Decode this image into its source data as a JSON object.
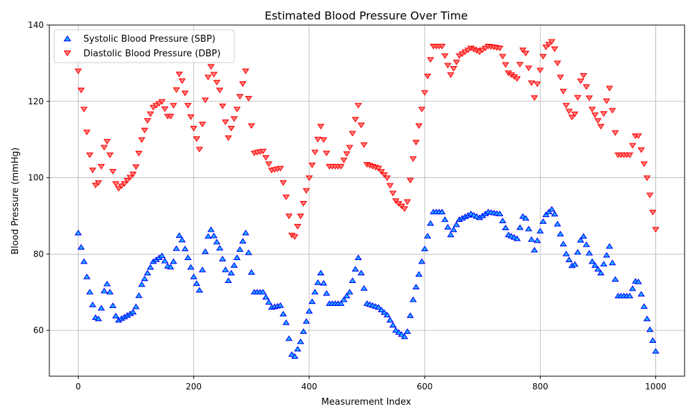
{
  "chart_data": {
    "type": "scatter",
    "title": "Estimated Blood Pressure Over Time",
    "xlabel": "Measurement Index",
    "ylabel": "Blood Pressure (mmHg)",
    "xlim": [
      -50,
      1050
    ],
    "ylim": [
      48,
      140
    ],
    "xticks": [
      0,
      200,
      400,
      600,
      800,
      1000
    ],
    "yticks": [
      60,
      80,
      100,
      120,
      140
    ],
    "grid": true,
    "legend_position": "upper-left",
    "series": [
      {
        "name": "Systolic Blood Pressure (SBP)",
        "marker": "triangle-up",
        "color": "#0000ff",
        "fill": "#1fb5ff",
        "step": 5,
        "x_start": 0,
        "x_end": 1000,
        "keypoints": [
          [
            0,
            85.5
          ],
          [
            10,
            78
          ],
          [
            20,
            70
          ],
          [
            32,
            62
          ],
          [
            38,
            64
          ],
          [
            48,
            73
          ],
          [
            55,
            70
          ],
          [
            62,
            65
          ],
          [
            68,
            62.5
          ],
          [
            80,
            63.5
          ],
          [
            98,
            65
          ],
          [
            110,
            72
          ],
          [
            120,
            75
          ],
          [
            130,
            78
          ],
          [
            145,
            79.5
          ],
          [
            158,
            76
          ],
          [
            165,
            78
          ],
          [
            176,
            85.5
          ],
          [
            190,
            79
          ],
          [
            200,
            74
          ],
          [
            210,
            70.5
          ],
          [
            218,
            79
          ],
          [
            228,
            87
          ],
          [
            245,
            81.5
          ],
          [
            260,
            73
          ],
          [
            275,
            79
          ],
          [
            290,
            85.5
          ],
          [
            305,
            70
          ],
          [
            320,
            70
          ],
          [
            335,
            66
          ],
          [
            350,
            66.5
          ],
          [
            360,
            62
          ],
          [
            372,
            52
          ],
          [
            385,
            57
          ],
          [
            400,
            65
          ],
          [
            420,
            75
          ],
          [
            435,
            67
          ],
          [
            455,
            67
          ],
          [
            470,
            70
          ],
          [
            485,
            79
          ],
          [
            500,
            67
          ],
          [
            520,
            66
          ],
          [
            535,
            64
          ],
          [
            550,
            60
          ],
          [
            568,
            58
          ],
          [
            580,
            68
          ],
          [
            595,
            78
          ],
          [
            610,
            88
          ],
          [
            615,
            91
          ],
          [
            630,
            91
          ],
          [
            645,
            85
          ],
          [
            660,
            89
          ],
          [
            680,
            90.5
          ],
          [
            695,
            89.5
          ],
          [
            710,
            91
          ],
          [
            730,
            90.5
          ],
          [
            745,
            85
          ],
          [
            760,
            84
          ],
          [
            772,
            91
          ],
          [
            790,
            81
          ],
          [
            808,
            90
          ],
          [
            822,
            92
          ],
          [
            845,
            80
          ],
          [
            858,
            76
          ],
          [
            873,
            85.5
          ],
          [
            890,
            78
          ],
          [
            905,
            75
          ],
          [
            920,
            82
          ],
          [
            935,
            69
          ],
          [
            955,
            69
          ],
          [
            968,
            74
          ],
          [
            985,
            63
          ],
          [
            1000,
            54.5
          ]
        ]
      },
      {
        "name": "Diastolic Blood Pressure (DBP)",
        "marker": "triangle-down",
        "color": "#ff0000",
        "fill": "#ff8080",
        "step": 5,
        "x_start": 0,
        "x_end": 1000,
        "keypoints": [
          [
            0,
            128
          ],
          [
            10,
            118
          ],
          [
            20,
            106
          ],
          [
            32,
            96.5
          ],
          [
            38,
            101
          ],
          [
            48,
            111
          ],
          [
            55,
            106
          ],
          [
            62,
            100
          ],
          [
            68,
            97
          ],
          [
            80,
            98.5
          ],
          [
            98,
            101.5
          ],
          [
            110,
            110
          ],
          [
            120,
            115
          ],
          [
            130,
            118.5
          ],
          [
            145,
            120
          ],
          [
            158,
            115
          ],
          [
            165,
            119
          ],
          [
            176,
            128
          ],
          [
            190,
            119
          ],
          [
            200,
            113
          ],
          [
            210,
            107.5
          ],
          [
            218,
            118
          ],
          [
            228,
            130
          ],
          [
            245,
            123
          ],
          [
            260,
            110.5
          ],
          [
            275,
            118
          ],
          [
            290,
            128
          ],
          [
            305,
            106.5
          ],
          [
            320,
            107
          ],
          [
            335,
            102
          ],
          [
            350,
            102.5
          ],
          [
            360,
            95
          ],
          [
            372,
            83
          ],
          [
            385,
            90
          ],
          [
            400,
            100
          ],
          [
            420,
            113.5
          ],
          [
            435,
            103
          ],
          [
            455,
            103
          ],
          [
            470,
            108
          ],
          [
            485,
            119
          ],
          [
            500,
            103.5
          ],
          [
            520,
            102.5
          ],
          [
            535,
            100
          ],
          [
            550,
            94
          ],
          [
            568,
            91.5
          ],
          [
            580,
            105
          ],
          [
            595,
            118
          ],
          [
            610,
            131
          ],
          [
            615,
            134.5
          ],
          [
            630,
            134.5
          ],
          [
            645,
            127
          ],
          [
            660,
            132
          ],
          [
            680,
            134
          ],
          [
            695,
            133
          ],
          [
            710,
            134.5
          ],
          [
            730,
            134
          ],
          [
            745,
            127.5
          ],
          [
            760,
            126
          ],
          [
            772,
            135
          ],
          [
            790,
            121
          ],
          [
            808,
            134
          ],
          [
            822,
            136
          ],
          [
            845,
            119
          ],
          [
            858,
            115
          ],
          [
            873,
            128
          ],
          [
            890,
            118
          ],
          [
            905,
            113.5
          ],
          [
            920,
            123.5
          ],
          [
            935,
            106
          ],
          [
            955,
            106
          ],
          [
            968,
            112.5
          ],
          [
            985,
            100
          ],
          [
            1000,
            86.5
          ]
        ]
      }
    ]
  }
}
